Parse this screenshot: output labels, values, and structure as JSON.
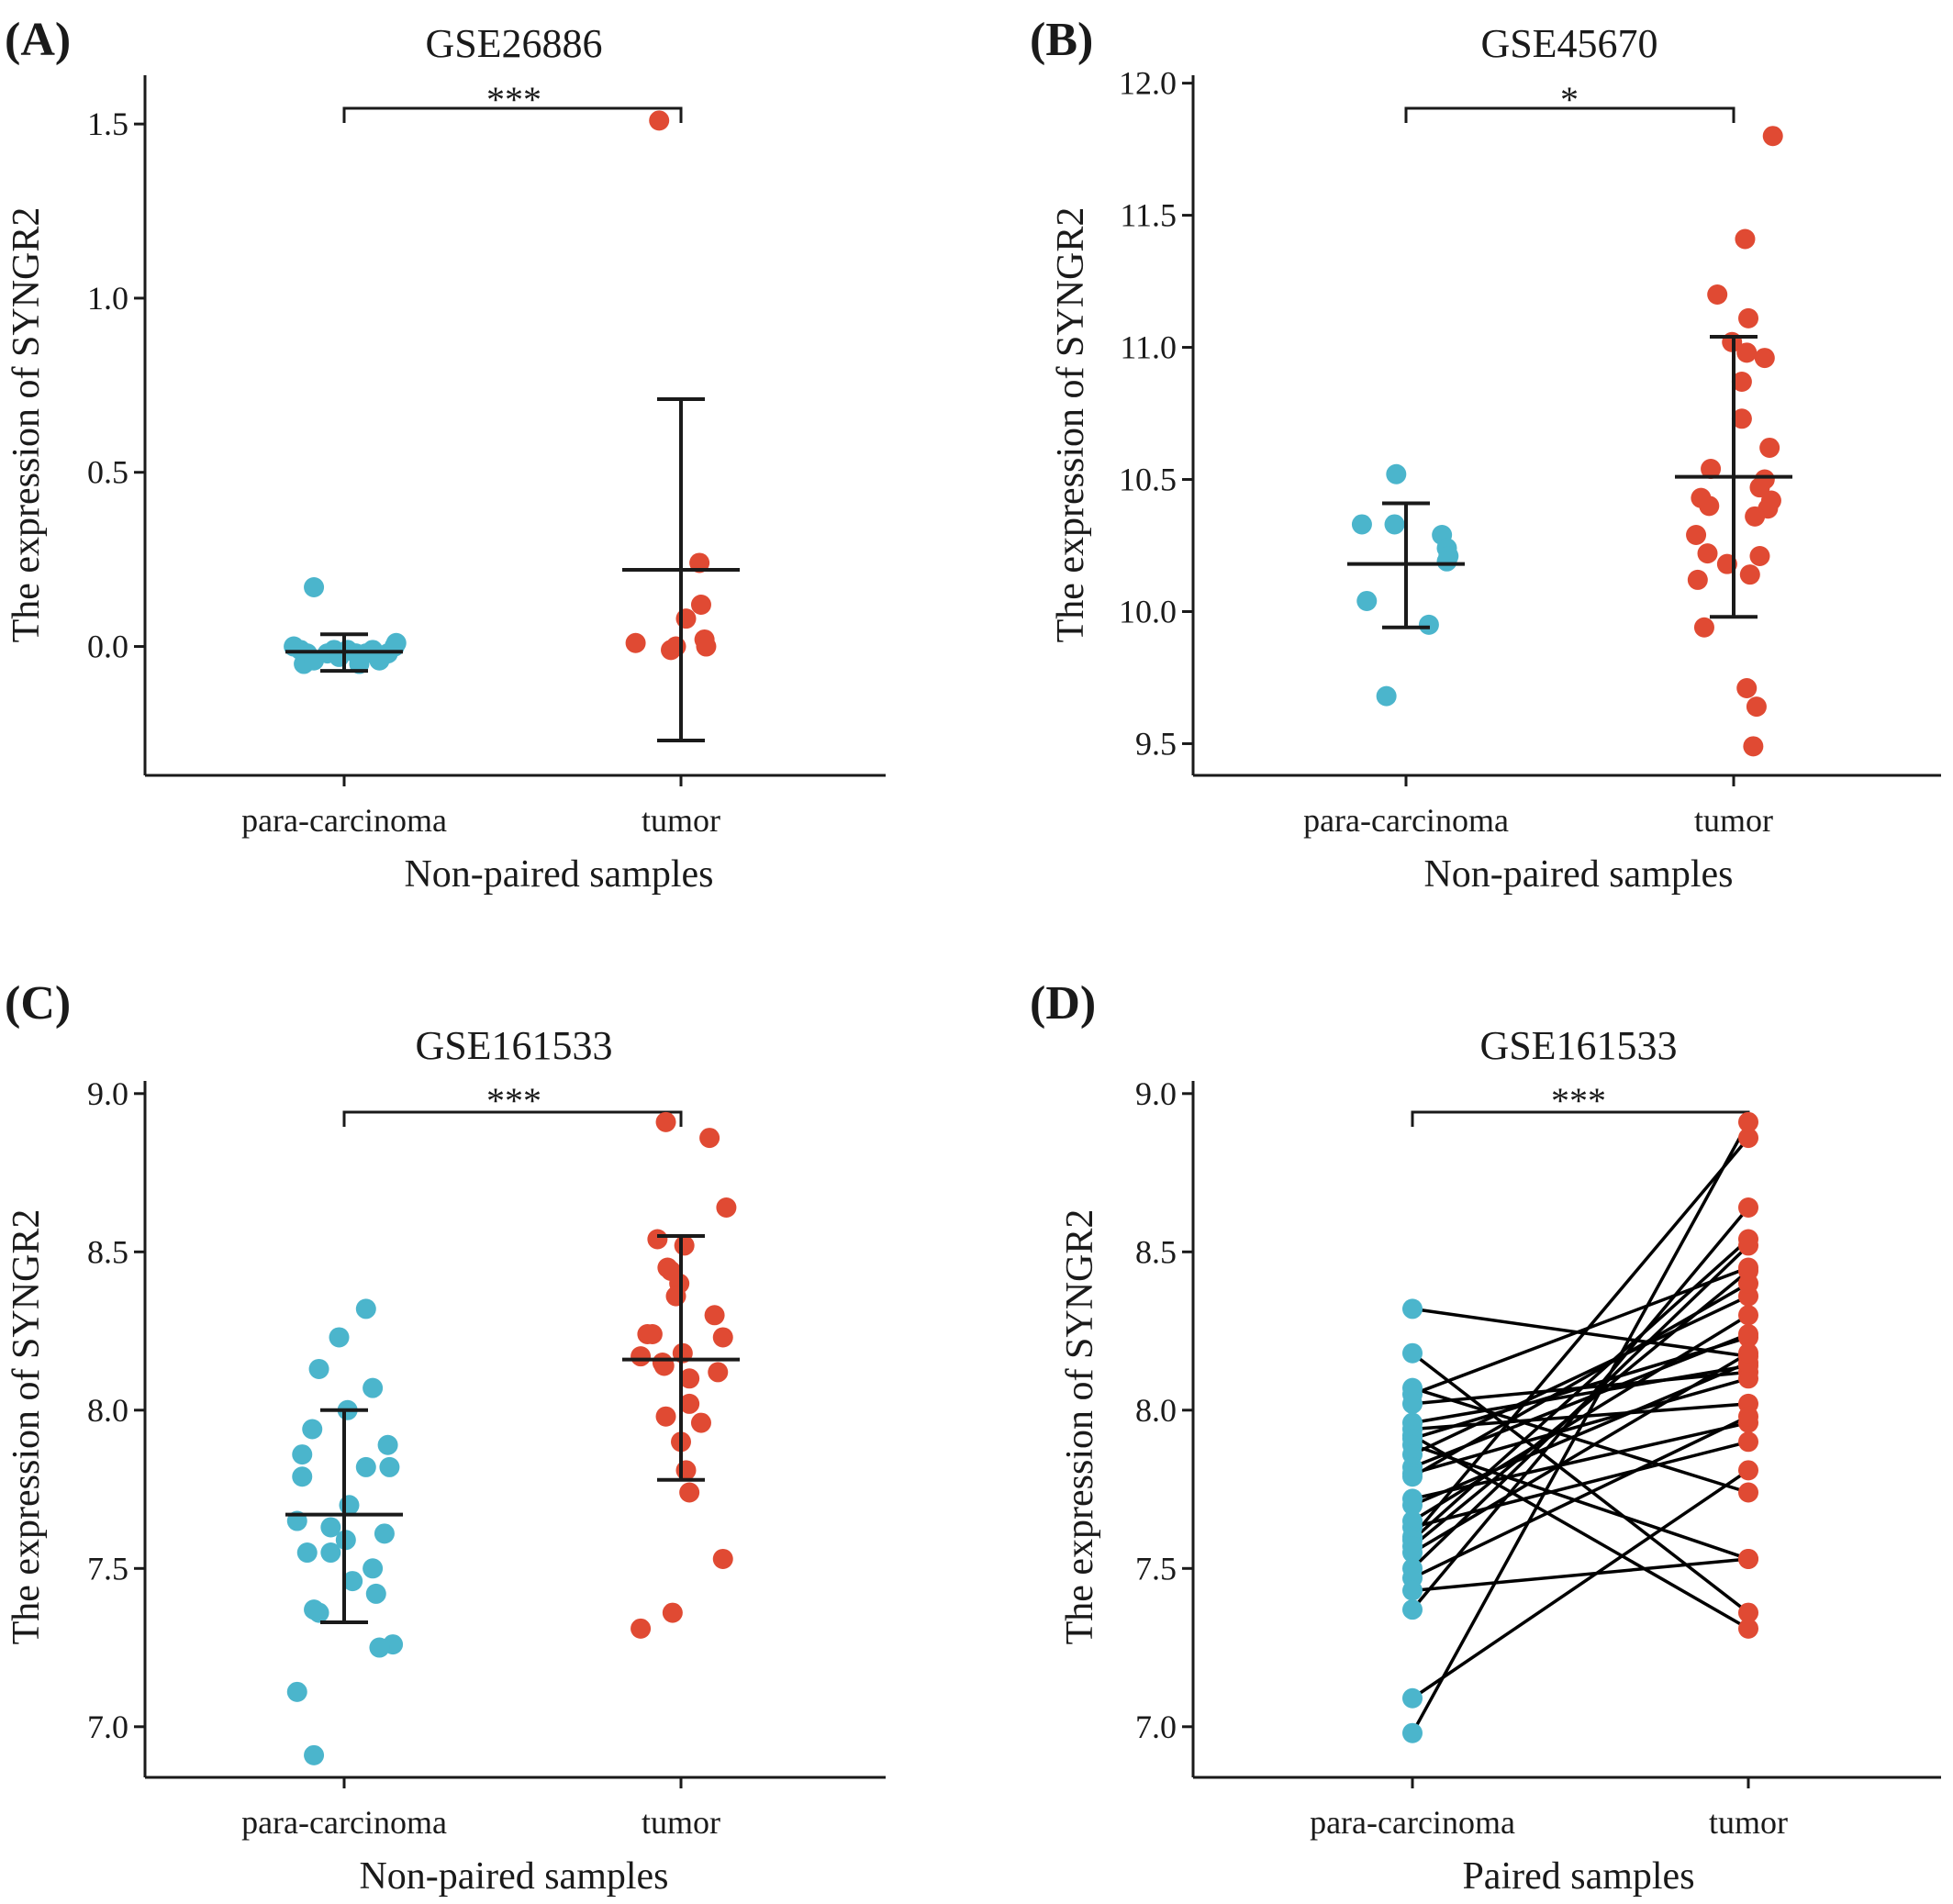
{
  "colors": {
    "para": "#4bb5cc",
    "tumor": "#e04a33",
    "ink": "#1a1a1a"
  },
  "chart_data": [
    {
      "type": "scatter",
      "panel_label": "(A)",
      "title": "GSE26886",
      "xlabel": "Non-paired samples",
      "ylabel": "The expression of SYNGR2",
      "categories": [
        "para-carcinoma",
        "tumor"
      ],
      "ylim": [
        -0.37,
        1.64
      ],
      "yticks": [
        0.0,
        0.5,
        1.0,
        1.5
      ],
      "ytick_labels": [
        "0.0",
        "0.5",
        "1.0",
        "1.5"
      ],
      "significance": "***",
      "series": [
        {
          "values": [
            0.17,
            0.0,
            -0.01,
            -0.02,
            -0.04,
            -0.05,
            -0.04,
            -0.02,
            -0.01,
            -0.03,
            -0.01,
            -0.02,
            -0.05,
            -0.02,
            -0.01,
            -0.04,
            -0.02,
            0.0,
            0.01
          ],
          "jitter": [
            -0.18,
            -0.3,
            -0.26,
            -0.22,
            -0.2,
            -0.24,
            -0.18,
            -0.1,
            -0.06,
            -0.03,
            0.02,
            0.07,
            0.09,
            0.13,
            0.17,
            0.21,
            0.26,
            0.3,
            0.31
          ],
          "mean": -0.015,
          "sd_low": -0.07,
          "sd_high": 0.035
        },
        {
          "values": [
            1.51,
            0.24,
            0.12,
            0.08,
            0.02,
            0.01,
            0.0,
            -0.01,
            0.0
          ],
          "jitter": [
            -0.13,
            0.11,
            0.12,
            0.03,
            0.14,
            -0.27,
            0.15,
            -0.06,
            -0.03
          ],
          "mean": 0.22,
          "sd_low": -0.27,
          "sd_high": 0.71
        }
      ]
    },
    {
      "type": "scatter",
      "panel_label": "(B)",
      "title": "GSE45670",
      "xlabel": "Non-paired samples",
      "ylabel": "The expression of SYNGR2",
      "categories": [
        "para-carcinoma",
        "tumor"
      ],
      "ylim": [
        9.38,
        12.03
      ],
      "yticks": [
        9.5,
        10.0,
        10.5,
        11.0,
        11.5,
        12.0
      ],
      "ytick_labels": [
        "9.5",
        "10.0",
        "10.5",
        "11.0",
        "11.5",
        "12.0"
      ],
      "significance": "*",
      "series": [
        {
          "values": [
            10.52,
            10.33,
            10.33,
            10.29,
            10.24,
            10.21,
            10.19,
            10.04,
            9.95,
            9.68
          ],
          "jitter": [
            -0.06,
            -0.27,
            -0.07,
            0.22,
            0.25,
            0.26,
            0.25,
            -0.24,
            0.14,
            -0.12
          ],
          "mean": 10.18,
          "sd_low": 9.94,
          "sd_high": 10.41
        },
        {
          "values": [
            11.8,
            11.41,
            11.2,
            11.11,
            11.02,
            10.98,
            10.96,
            10.87,
            10.73,
            10.62,
            10.54,
            10.5,
            10.47,
            10.43,
            10.42,
            10.4,
            10.39,
            10.36,
            10.29,
            10.22,
            10.21,
            10.18,
            10.14,
            10.12,
            9.94,
            9.71,
            9.64,
            9.49
          ],
          "jitter": [
            0.24,
            0.07,
            -0.1,
            0.09,
            -0.01,
            0.08,
            0.19,
            0.05,
            0.05,
            0.22,
            -0.14,
            0.19,
            0.16,
            -0.2,
            0.23,
            -0.15,
            0.21,
            0.13,
            -0.23,
            -0.16,
            0.16,
            -0.04,
            0.1,
            -0.22,
            -0.18,
            0.08,
            0.14,
            0.12
          ],
          "mean": 10.51,
          "sd_low": 9.98,
          "sd_high": 11.04
        }
      ]
    },
    {
      "type": "scatter",
      "panel_label": "(C)",
      "title": "GSE161533",
      "xlabel": "Non-paired samples",
      "ylabel": "The expression of SYNGR2",
      "categories": [
        "para-carcinoma",
        "tumor"
      ],
      "ylim": [
        6.84,
        9.04
      ],
      "yticks": [
        7.0,
        7.5,
        8.0,
        8.5,
        9.0
      ],
      "ytick_labels": [
        "7.0",
        "7.5",
        "8.0",
        "8.5",
        "9.0"
      ],
      "significance": "***",
      "series": [
        {
          "values": [
            8.32,
            8.23,
            8.13,
            8.07,
            8.0,
            7.94,
            7.89,
            7.86,
            7.82,
            7.82,
            7.79,
            7.7,
            7.65,
            7.63,
            7.61,
            7.59,
            7.55,
            7.55,
            7.5,
            7.46,
            7.42,
            7.37,
            7.36,
            7.26,
            7.25,
            7.11,
            6.91
          ],
          "jitter": [
            0.13,
            -0.03,
            -0.15,
            0.17,
            0.02,
            -0.19,
            0.26,
            -0.25,
            0.13,
            0.27,
            -0.25,
            0.03,
            -0.28,
            -0.08,
            0.24,
            0.01,
            -0.22,
            -0.08,
            0.17,
            0.05,
            0.19,
            -0.18,
            -0.15,
            0.29,
            0.21,
            -0.28,
            -0.18
          ],
          "mean": 7.67,
          "sd_low": 7.33,
          "sd_high": 8.0
        },
        {
          "values": [
            8.91,
            8.86,
            8.64,
            8.54,
            8.52,
            8.45,
            8.44,
            8.4,
            8.36,
            8.3,
            8.24,
            8.24,
            8.23,
            8.18,
            8.17,
            8.15,
            8.14,
            8.12,
            8.1,
            8.02,
            7.98,
            7.96,
            7.9,
            7.81,
            7.74,
            7.53,
            7.36,
            7.31
          ],
          "jitter": [
            -0.09,
            0.17,
            0.27,
            -0.14,
            0.02,
            -0.08,
            -0.06,
            -0.01,
            -0.03,
            0.2,
            -0.2,
            -0.17,
            0.25,
            0.01,
            -0.24,
            -0.11,
            -0.1,
            0.22,
            0.05,
            0.05,
            -0.09,
            0.12,
            0.0,
            0.03,
            0.05,
            0.25,
            -0.05,
            -0.24
          ],
          "mean": 8.16,
          "sd_low": 7.78,
          "sd_high": 8.55
        }
      ]
    },
    {
      "type": "line",
      "panel_label": "(D)",
      "title": "GSE161533",
      "xlabel": "Paired samples",
      "ylabel": "The expression of SYNGR2",
      "categories": [
        "para-carcinoma",
        "tumor"
      ],
      "ylim": [
        6.84,
        9.04
      ],
      "yticks": [
        7.0,
        7.5,
        8.0,
        8.5,
        9.0
      ],
      "ytick_labels": [
        "7.0",
        "7.5",
        "8.0",
        "8.5",
        "9.0"
      ],
      "significance": "***",
      "pairs": [
        [
          8.32,
          8.17
        ],
        [
          8.18,
          7.36
        ],
        [
          8.07,
          7.74
        ],
        [
          8.05,
          8.45
        ],
        [
          8.02,
          8.12
        ],
        [
          7.96,
          8.14
        ],
        [
          7.94,
          8.02
        ],
        [
          7.92,
          7.31
        ],
        [
          7.91,
          8.23
        ],
        [
          7.89,
          7.53
        ],
        [
          7.86,
          8.36
        ],
        [
          7.82,
          8.24
        ],
        [
          7.8,
          8.1
        ],
        [
          7.79,
          8.4
        ],
        [
          7.72,
          7.96
        ],
        [
          7.7,
          8.15
        ],
        [
          7.65,
          8.3
        ],
        [
          7.63,
          7.9
        ],
        [
          7.6,
          8.86
        ],
        [
          7.59,
          8.54
        ],
        [
          7.57,
          8.44
        ],
        [
          7.55,
          8.18
        ],
        [
          7.5,
          8.52
        ],
        [
          7.47,
          7.98
        ],
        [
          7.43,
          7.53
        ],
        [
          7.37,
          8.64
        ],
        [
          7.09,
          7.81
        ],
        [
          6.98,
          8.91
        ]
      ]
    }
  ]
}
